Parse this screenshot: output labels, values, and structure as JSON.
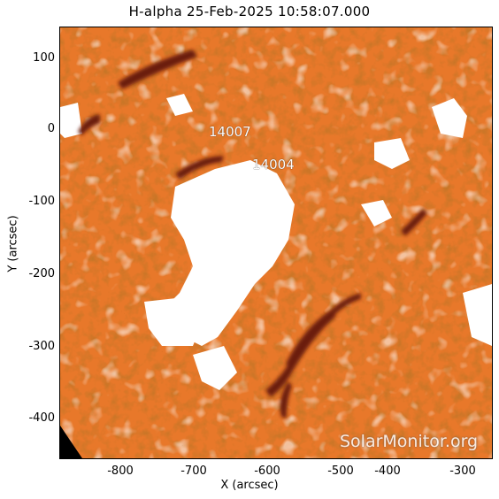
{
  "title": "H-alpha 25-Feb-2025 10:58:07.000",
  "xlabel": "X (arcsec)",
  "ylabel": "Y (arcsec)",
  "x_ticks": [
    "-800",
    "-700",
    "-600",
    "-500",
    "-400",
    "-300"
  ],
  "y_ticks": [
    "100",
    "0",
    "-100",
    "-200",
    "-300",
    "-400"
  ],
  "regions": [
    "14007",
    "14004"
  ],
  "watermark": "SolarMonitor.org",
  "colors": {
    "background": "#e8782a",
    "dark_filament": "#6a1c08",
    "plage": "#ffffff"
  }
}
